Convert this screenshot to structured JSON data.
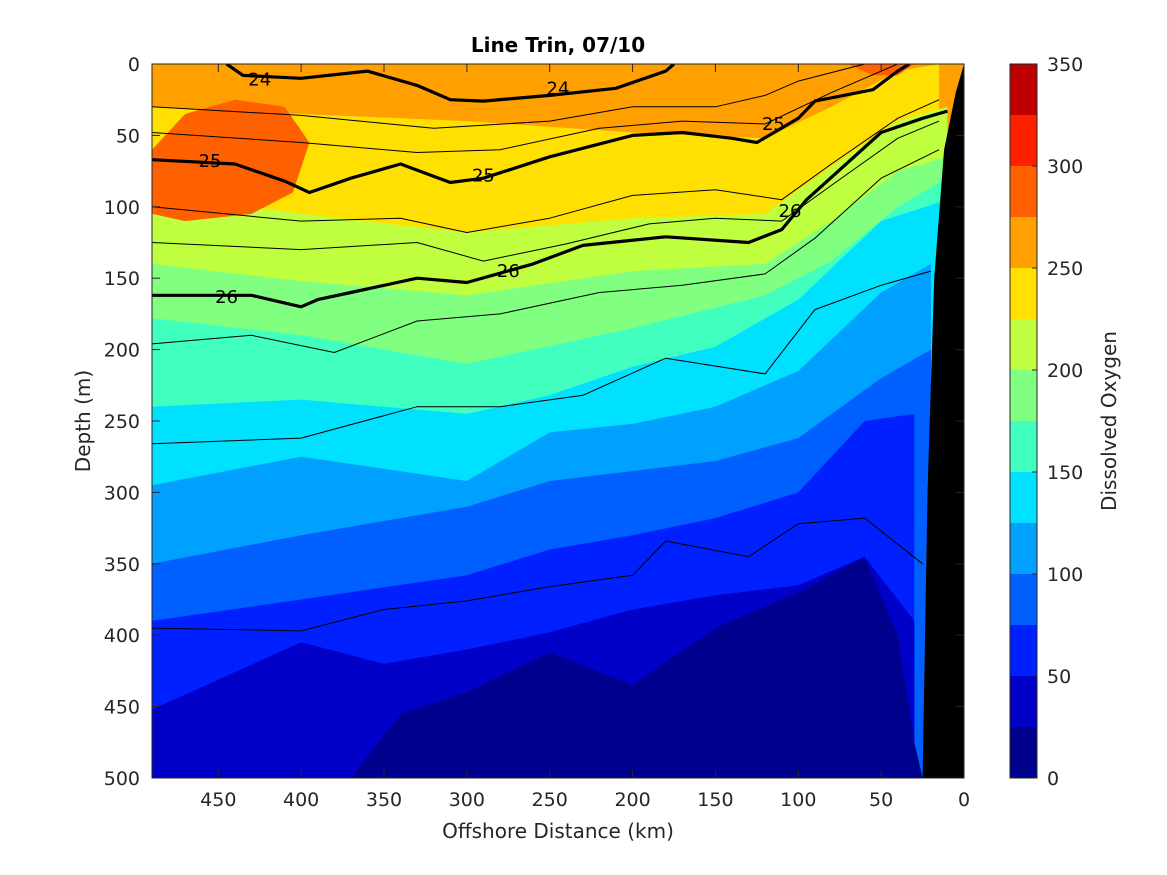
{
  "chart_data": {
    "type": "contour",
    "title": "Line Trin, 07/10",
    "xlabel": "Offshore Distance (km)",
    "ylabel": "Depth (m)",
    "colorbar_label": "Dissolved Oxygen",
    "xlim": [
      490,
      0
    ],
    "ylim": [
      0,
      500
    ],
    "x_reversed": true,
    "y_reversed": true,
    "x_ticks": [
      450,
      400,
      350,
      300,
      250,
      200,
      150,
      100,
      50,
      0
    ],
    "y_ticks": [
      0,
      50,
      100,
      150,
      200,
      250,
      300,
      350,
      400,
      450,
      500
    ],
    "colorbar": {
      "range": [
        0,
        350
      ],
      "ticks": [
        0,
        50,
        100,
        150,
        200,
        250,
        300,
        350
      ],
      "levels": [
        0,
        25,
        50,
        75,
        100,
        125,
        150,
        175,
        200,
        225,
        250,
        275,
        300,
        325,
        350
      ],
      "colors": [
        "#00008f",
        "#0000c8",
        "#0020ff",
        "#0060ff",
        "#00a0ff",
        "#00e0ff",
        "#40ffbf",
        "#80ff80",
        "#c0ff40",
        "#ffe000",
        "#ffa000",
        "#ff6000",
        "#ff2000",
        "#bf0000"
      ]
    },
    "oxygen_contours": [
      {
        "level": 250,
        "points": [
          [
            490,
            30
          ],
          [
            400,
            35
          ],
          [
            300,
            40
          ],
          [
            200,
            48
          ],
          [
            120,
            52
          ],
          [
            80,
            30
          ],
          [
            40,
            5
          ],
          [
            15,
            0
          ]
        ]
      },
      {
        "level": 225,
        "points": [
          [
            490,
            90
          ],
          [
            400,
            105
          ],
          [
            300,
            118
          ],
          [
            200,
            108
          ],
          [
            120,
            105
          ],
          [
            80,
            72
          ],
          [
            40,
            40
          ],
          [
            10,
            30
          ]
        ]
      },
      {
        "level": 200,
        "points": [
          [
            490,
            140
          ],
          [
            400,
            152
          ],
          [
            300,
            162
          ],
          [
            200,
            145
          ],
          [
            120,
            140
          ],
          [
            80,
            110
          ],
          [
            40,
            75
          ],
          [
            10,
            65
          ]
        ]
      },
      {
        "level": 175,
        "points": [
          [
            490,
            178
          ],
          [
            400,
            190
          ],
          [
            300,
            210
          ],
          [
            200,
            185
          ],
          [
            120,
            162
          ],
          [
            80,
            138
          ],
          [
            40,
            100
          ],
          [
            10,
            80
          ]
        ]
      },
      {
        "level": 150,
        "points": [
          [
            490,
            240
          ],
          [
            400,
            235
          ],
          [
            300,
            245
          ],
          [
            250,
            232
          ],
          [
            200,
            212
          ],
          [
            150,
            198
          ],
          [
            100,
            165
          ],
          [
            50,
            110
          ],
          [
            10,
            95
          ]
        ]
      },
      {
        "level": 125,
        "points": [
          [
            490,
            295
          ],
          [
            400,
            275
          ],
          [
            300,
            292
          ],
          [
            250,
            258
          ],
          [
            200,
            252
          ],
          [
            150,
            240
          ],
          [
            100,
            215
          ],
          [
            50,
            160
          ],
          [
            20,
            140
          ]
        ]
      },
      {
        "level": 100,
        "points": [
          [
            490,
            350
          ],
          [
            400,
            330
          ],
          [
            300,
            310
          ],
          [
            250,
            292
          ],
          [
            200,
            285
          ],
          [
            150,
            278
          ],
          [
            100,
            262
          ],
          [
            50,
            220
          ],
          [
            20,
            200
          ]
        ]
      },
      {
        "level": 75,
        "points": [
          [
            490,
            390
          ],
          [
            400,
            375
          ],
          [
            300,
            358
          ],
          [
            250,
            340
          ],
          [
            200,
            330
          ],
          [
            150,
            318
          ],
          [
            100,
            300
          ],
          [
            60,
            250
          ],
          [
            30,
            245
          ]
        ]
      },
      {
        "level": 50,
        "points": [
          [
            490,
            452
          ],
          [
            400,
            405
          ],
          [
            350,
            420
          ],
          [
            300,
            410
          ],
          [
            250,
            398
          ],
          [
            200,
            382
          ],
          [
            150,
            372
          ],
          [
            100,
            365
          ],
          [
            60,
            345
          ],
          [
            30,
            390
          ]
        ]
      },
      {
        "level": 25,
        "points": [
          [
            370,
            500
          ],
          [
            340,
            455
          ],
          [
            300,
            440
          ],
          [
            250,
            412
          ],
          [
            200,
            435
          ],
          [
            150,
            395
          ],
          [
            100,
            370
          ],
          [
            60,
            345
          ],
          [
            40,
            400
          ],
          [
            30,
            475
          ],
          [
            25,
            500
          ]
        ]
      }
    ],
    "density_contours": [
      {
        "level": 24,
        "label": true,
        "points": [
          [
            445,
            0
          ],
          [
            435,
            8
          ],
          [
            400,
            10
          ],
          [
            360,
            5
          ],
          [
            330,
            15
          ],
          [
            310,
            25
          ],
          [
            290,
            26
          ],
          [
            250,
            22
          ],
          [
            210,
            17
          ],
          [
            180,
            5
          ],
          [
            175,
            0
          ]
        ]
      },
      {
        "level": 25,
        "label": true,
        "points": [
          [
            490,
            67
          ],
          [
            440,
            70
          ],
          [
            410,
            82
          ],
          [
            395,
            90
          ],
          [
            370,
            80
          ],
          [
            340,
            70
          ],
          [
            310,
            83
          ],
          [
            290,
            80
          ],
          [
            250,
            65
          ],
          [
            200,
            50
          ],
          [
            170,
            48
          ],
          [
            140,
            52
          ],
          [
            125,
            55
          ],
          [
            100,
            38
          ],
          [
            90,
            26
          ],
          [
            55,
            18
          ],
          [
            40,
            5
          ],
          [
            33,
            0
          ]
        ]
      },
      {
        "level": 26,
        "label": true,
        "points": [
          [
            490,
            162
          ],
          [
            460,
            162
          ],
          [
            430,
            162
          ],
          [
            400,
            170
          ],
          [
            390,
            165
          ],
          [
            370,
            160
          ],
          [
            330,
            150
          ],
          [
            300,
            153
          ],
          [
            260,
            140
          ],
          [
            230,
            127
          ],
          [
            180,
            121
          ],
          [
            130,
            125
          ],
          [
            110,
            116
          ],
          [
            95,
            95
          ],
          [
            50,
            48
          ],
          [
            25,
            38
          ],
          [
            10,
            33
          ]
        ]
      },
      {
        "level": 23.5,
        "label": false,
        "points": [
          [
            490,
            30
          ],
          [
            400,
            36
          ],
          [
            320,
            45
          ],
          [
            250,
            40
          ],
          [
            200,
            30
          ],
          [
            150,
            30
          ],
          [
            120,
            22
          ],
          [
            100,
            12
          ],
          [
            60,
            0
          ]
        ]
      },
      {
        "level": 24.5,
        "label": false,
        "points": [
          [
            490,
            48
          ],
          [
            400,
            55
          ],
          [
            330,
            62
          ],
          [
            280,
            60
          ],
          [
            220,
            45
          ],
          [
            170,
            40
          ],
          [
            120,
            42
          ],
          [
            80,
            20
          ],
          [
            40,
            0
          ]
        ]
      },
      {
        "level": 25.5,
        "label": false,
        "points": [
          [
            490,
            100
          ],
          [
            400,
            110
          ],
          [
            340,
            108
          ],
          [
            300,
            118
          ],
          [
            250,
            108
          ],
          [
            200,
            92
          ],
          [
            150,
            88
          ],
          [
            110,
            95
          ],
          [
            80,
            70
          ],
          [
            40,
            38
          ],
          [
            15,
            25
          ]
        ]
      },
      {
        "level": 25.75,
        "label": false,
        "points": [
          [
            490,
            125
          ],
          [
            400,
            130
          ],
          [
            330,
            125
          ],
          [
            290,
            138
          ],
          [
            240,
            126
          ],
          [
            190,
            112
          ],
          [
            150,
            108
          ],
          [
            110,
            110
          ],
          [
            80,
            85
          ],
          [
            40,
            52
          ],
          [
            15,
            40
          ]
        ]
      },
      {
        "level": 26.25,
        "label": false,
        "points": [
          [
            490,
            196
          ],
          [
            430,
            190
          ],
          [
            380,
            202
          ],
          [
            330,
            180
          ],
          [
            280,
            175
          ],
          [
            220,
            160
          ],
          [
            170,
            155
          ],
          [
            120,
            147
          ],
          [
            90,
            122
          ],
          [
            50,
            80
          ],
          [
            15,
            60
          ]
        ]
      },
      {
        "level": 26.5,
        "label": false,
        "points": [
          [
            490,
            266
          ],
          [
            400,
            262
          ],
          [
            330,
            240
          ],
          [
            280,
            240
          ],
          [
            230,
            232
          ],
          [
            180,
            206
          ],
          [
            120,
            217
          ],
          [
            90,
            172
          ],
          [
            50,
            155
          ],
          [
            20,
            145
          ]
        ]
      },
      {
        "level": 26.75,
        "label": false,
        "points": [
          [
            490,
            395
          ],
          [
            400,
            397
          ],
          [
            350,
            382
          ],
          [
            300,
            376
          ],
          [
            250,
            366
          ],
          [
            200,
            358
          ],
          [
            180,
            334
          ],
          [
            130,
            345
          ],
          [
            100,
            322
          ],
          [
            60,
            318
          ],
          [
            25,
            350
          ]
        ]
      }
    ],
    "bathymetry_color": "#000000",
    "bathymetry": [
      [
        25,
        500
      ],
      [
        22,
        300
      ],
      [
        18,
        150
      ],
      [
        12,
        60
      ],
      [
        5,
        20
      ],
      [
        0,
        0
      ]
    ],
    "contour_labels": [
      {
        "text": "24",
        "x": 425,
        "y": 11
      },
      {
        "text": "24",
        "x": 245,
        "y": 17
      },
      {
        "text": "25",
        "x": 455,
        "y": 68
      },
      {
        "text": "25",
        "x": 290,
        "y": 78
      },
      {
        "text": "25",
        "x": 115,
        "y": 42
      },
      {
        "text": "26",
        "x": 445,
        "y": 163
      },
      {
        "text": "26",
        "x": 275,
        "y": 145
      },
      {
        "text": "26",
        "x": 105,
        "y": 103
      }
    ]
  }
}
